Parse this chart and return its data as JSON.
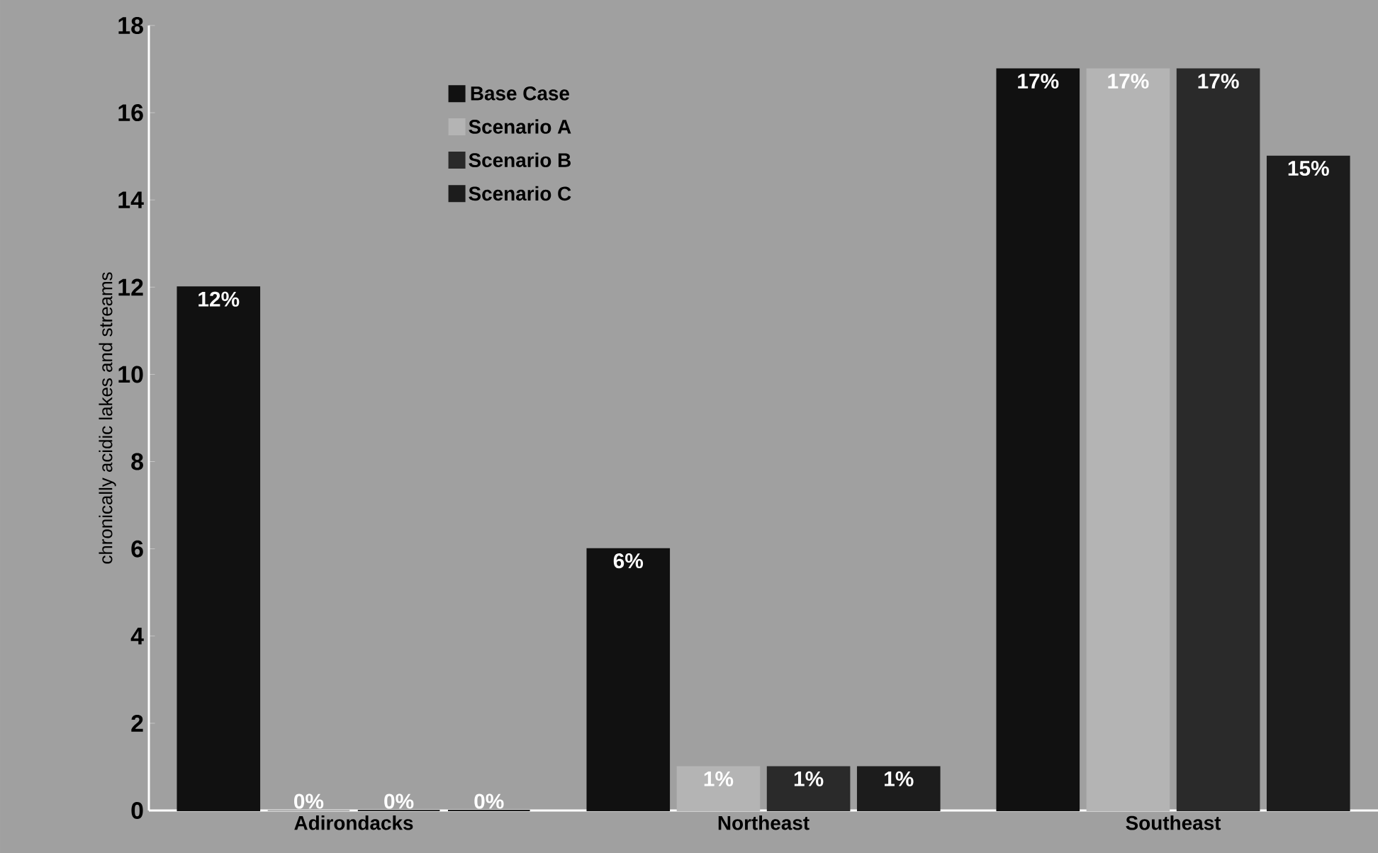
{
  "chart_data": {
    "type": "bar",
    "ylabel": "chronically acidic lakes and streams",
    "categories": [
      "Adirondacks",
      "Northeast",
      "Southeast"
    ],
    "series": [
      {
        "name": "Base Case",
        "color": "#111111",
        "values": [
          12,
          6,
          17
        ],
        "value_labels": [
          "12%",
          "6%",
          "17%"
        ]
      },
      {
        "name": "Scenario A",
        "color": "#b4b4b4",
        "values": [
          0,
          1,
          17
        ],
        "value_labels": [
          "0%",
          "1%",
          "17%"
        ]
      },
      {
        "name": "Scenario B",
        "color": "#2a2a2a",
        "values": [
          0,
          1,
          17
        ],
        "value_labels": [
          "0%",
          "1%",
          "17%"
        ]
      },
      {
        "name": "Scenario C",
        "color": "#1c1c1c",
        "values": [
          0,
          1,
          15
        ],
        "value_labels": [
          "0%",
          "1%",
          "15%"
        ]
      }
    ],
    "ylim": [
      0,
      18
    ],
    "yticks": [
      0,
      2,
      4,
      6,
      8,
      10,
      12,
      14,
      16,
      18
    ],
    "legend": "top left"
  }
}
